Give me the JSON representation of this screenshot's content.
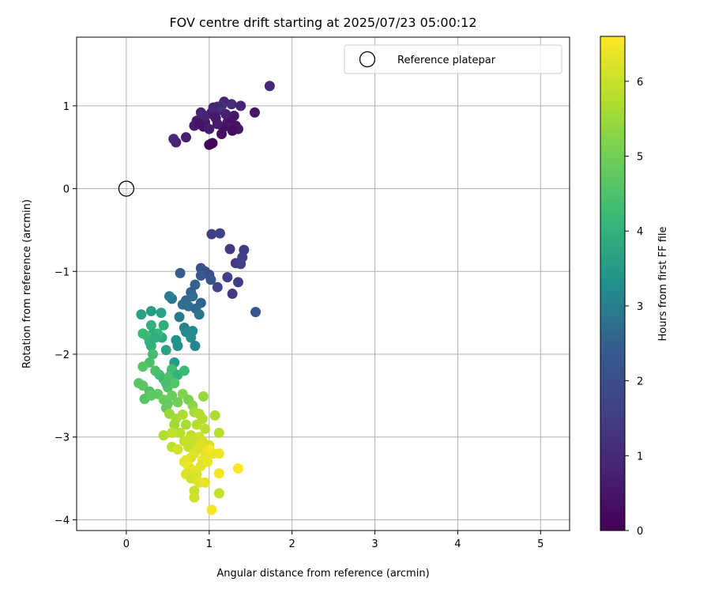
{
  "chart_data": {
    "type": "scatter",
    "title": "FOV centre drift starting at 2025/07/23 05:00:12",
    "xlabel": "Angular distance from reference (arcmin)",
    "ylabel": "Rotation from reference (arcmin)",
    "xlim": [
      -0.6,
      5.35
    ],
    "ylim": [
      -4.13,
      1.83
    ],
    "xticks": [
      0,
      1,
      2,
      3,
      4,
      5
    ],
    "yticks": [
      -4,
      -3,
      -2,
      -1,
      0,
      1
    ],
    "grid": true,
    "legend_position": "top-right",
    "reference": {
      "label": "Reference platepar",
      "x": 0,
      "y": 0
    },
    "colorbar": {
      "label": "Hours from first FF file",
      "range": [
        0,
        6.6
      ],
      "ticks": [
        0,
        1,
        2,
        3,
        4,
        5,
        6
      ],
      "colormap": "viridis"
    },
    "series": [
      {
        "points": [
          [
            1.02,
            0.54
          ],
          [
            1.0,
            0.53
          ],
          [
            1.04,
            0.55
          ],
          [
            1.15,
            0.66
          ],
          [
            0.6,
            0.56
          ],
          [
            0.72,
            0.62
          ],
          [
            0.57,
            0.6
          ],
          [
            1.55,
            0.92
          ],
          [
            1.73,
            1.24
          ],
          [
            0.85,
            0.82
          ],
          [
            0.93,
            0.75
          ],
          [
            1.08,
            0.85
          ],
          [
            1.22,
            0.8
          ],
          [
            1.32,
            0.76
          ],
          [
            1.35,
            0.72
          ],
          [
            1.18,
            1.05
          ],
          [
            1.27,
            1.02
          ],
          [
            1.38,
            1.0
          ],
          [
            1.1,
            0.99
          ],
          [
            1.03,
            0.92
          ],
          [
            0.9,
            0.92
          ],
          [
            0.82,
            0.76
          ],
          [
            0.95,
            0.8
          ],
          [
            1.17,
            0.74
          ],
          [
            1.25,
            0.85
          ],
          [
            1.3,
            0.88
          ],
          [
            1.1,
            0.78
          ],
          [
            1.0,
            0.72
          ],
          [
            0.95,
            0.88
          ],
          [
            1.12,
            0.95
          ],
          [
            1.2,
            0.9
          ],
          [
            0.88,
            0.78
          ],
          [
            1.06,
            0.88
          ],
          [
            1.28,
            0.7
          ],
          [
            1.15,
            1.0
          ],
          [
            1.05,
            0.98
          ],
          [
            1.03,
            -0.55
          ],
          [
            1.13,
            -0.54
          ],
          [
            1.25,
            -0.73
          ],
          [
            1.42,
            -0.74
          ],
          [
            1.4,
            -0.83
          ],
          [
            1.32,
            -0.9
          ],
          [
            1.38,
            -0.91
          ],
          [
            1.35,
            -1.13
          ],
          [
            1.22,
            -1.07
          ],
          [
            1.28,
            -1.27
          ],
          [
            1.1,
            -1.19
          ],
          [
            1.56,
            -1.49
          ],
          [
            0.9,
            -0.96
          ],
          [
            0.95,
            -1.0
          ],
          [
            1.0,
            -1.04
          ],
          [
            1.02,
            -1.1
          ],
          [
            0.9,
            -1.05
          ],
          [
            0.83,
            -1.16
          ],
          [
            0.78,
            -1.25
          ],
          [
            0.72,
            -1.35
          ],
          [
            0.65,
            -1.02
          ],
          [
            0.8,
            -1.3
          ],
          [
            0.75,
            -1.42
          ],
          [
            0.9,
            -1.38
          ],
          [
            0.68,
            -1.4
          ],
          [
            0.84,
            -1.45
          ],
          [
            0.88,
            -1.52
          ],
          [
            0.64,
            -1.55
          ],
          [
            0.55,
            -1.33
          ],
          [
            0.52,
            -1.3
          ],
          [
            0.7,
            -1.68
          ],
          [
            0.72,
            -1.73
          ],
          [
            0.8,
            -1.72
          ],
          [
            0.78,
            -1.8
          ],
          [
            0.83,
            -1.9
          ],
          [
            0.6,
            -1.83
          ],
          [
            0.62,
            -1.9
          ],
          [
            0.58,
            -2.1
          ],
          [
            0.55,
            -2.2
          ],
          [
            0.48,
            -1.95
          ],
          [
            0.43,
            -1.8
          ],
          [
            0.45,
            -1.65
          ],
          [
            0.3,
            -1.48
          ],
          [
            0.18,
            -1.52
          ],
          [
            0.42,
            -1.5
          ],
          [
            0.3,
            -1.65
          ],
          [
            0.32,
            -1.75
          ],
          [
            0.25,
            -1.78
          ],
          [
            0.2,
            -1.75
          ],
          [
            0.28,
            -1.85
          ],
          [
            0.3,
            -1.9
          ],
          [
            0.38,
            -1.75
          ],
          [
            0.35,
            -1.8
          ],
          [
            0.32,
            -2.0
          ],
          [
            0.28,
            -2.1
          ],
          [
            0.2,
            -2.15
          ],
          [
            0.35,
            -2.2
          ],
          [
            0.4,
            -2.25
          ],
          [
            0.45,
            -2.3
          ],
          [
            0.52,
            -2.27
          ],
          [
            0.55,
            -2.18
          ],
          [
            0.62,
            -2.25
          ],
          [
            0.7,
            -2.2
          ],
          [
            0.5,
            -2.4
          ],
          [
            0.58,
            -2.35
          ],
          [
            0.48,
            -2.35
          ],
          [
            0.15,
            -2.35
          ],
          [
            0.2,
            -2.38
          ],
          [
            0.28,
            -2.45
          ],
          [
            0.22,
            -2.54
          ],
          [
            0.3,
            -2.5
          ],
          [
            0.38,
            -2.48
          ],
          [
            0.45,
            -2.55
          ],
          [
            0.5,
            -2.6
          ],
          [
            0.48,
            -2.65
          ],
          [
            0.55,
            -2.5
          ],
          [
            0.62,
            -2.58
          ],
          [
            0.68,
            -2.48
          ],
          [
            0.75,
            -2.55
          ],
          [
            0.8,
            -2.62
          ],
          [
            0.52,
            -2.72
          ],
          [
            0.6,
            -2.78
          ],
          [
            0.68,
            -2.73
          ],
          [
            0.72,
            -2.85
          ],
          [
            0.58,
            -2.85
          ],
          [
            0.65,
            -2.95
          ],
          [
            0.55,
            -2.95
          ],
          [
            0.45,
            -2.98
          ],
          [
            0.82,
            -2.7
          ],
          [
            0.88,
            -2.72
          ],
          [
            0.92,
            -2.78
          ],
          [
            0.85,
            -2.85
          ],
          [
            0.95,
            -2.9
          ],
          [
            0.93,
            -2.51
          ],
          [
            1.07,
            -2.74
          ],
          [
            1.12,
            -2.95
          ],
          [
            0.78,
            -2.98
          ],
          [
            0.7,
            -3.05
          ],
          [
            0.8,
            -3.05
          ],
          [
            0.88,
            -3.0
          ],
          [
            0.92,
            -3.05
          ],
          [
            1.0,
            -3.1
          ],
          [
            0.75,
            -3.12
          ],
          [
            0.55,
            -3.12
          ],
          [
            0.62,
            -3.15
          ],
          [
            0.85,
            -3.15
          ],
          [
            0.9,
            -3.1
          ],
          [
            0.95,
            -3.2
          ],
          [
            0.82,
            -3.2
          ],
          [
            0.78,
            -3.25
          ],
          [
            0.72,
            -3.28
          ],
          [
            0.7,
            -3.3
          ],
          [
            0.75,
            -3.35
          ],
          [
            0.8,
            -3.4
          ],
          [
            0.85,
            -3.45
          ],
          [
            0.72,
            -3.45
          ],
          [
            1.05,
            -3.2
          ],
          [
            1.12,
            -3.2
          ],
          [
            1.0,
            -3.15
          ],
          [
            0.92,
            -3.28
          ],
          [
            1.12,
            -3.44
          ],
          [
            1.35,
            -3.38
          ],
          [
            0.78,
            -3.5
          ],
          [
            0.85,
            -3.52
          ],
          [
            0.88,
            -3.55
          ],
          [
            0.95,
            -3.55
          ],
          [
            0.82,
            -3.65
          ],
          [
            0.82,
            -3.73
          ],
          [
            1.12,
            -3.68
          ],
          [
            1.03,
            -3.88
          ],
          [
            0.9,
            -3.35
          ],
          [
            0.98,
            -3.3
          ]
        ],
        "hours": [
          0.08,
          0.05,
          0.12,
          0.3,
          0.85,
          0.7,
          1.0,
          0.5,
          0.95,
          0.6,
          0.4,
          0.55,
          0.65,
          0.45,
          0.5,
          0.9,
          1.05,
          0.85,
          0.95,
          0.75,
          0.85,
          0.65,
          0.55,
          0.35,
          0.4,
          0.5,
          0.6,
          0.7,
          0.8,
          1.0,
          0.75,
          0.45,
          0.6,
          0.3,
          1.1,
          0.9,
          1.5,
          1.6,
          1.4,
          1.5,
          1.55,
          1.45,
          1.6,
          1.5,
          1.55,
          1.45,
          1.7,
          2.25,
          2.1,
          2.0,
          1.9,
          2.2,
          2.35,
          2.55,
          2.5,
          2.6,
          2.4,
          2.7,
          2.8,
          2.55,
          2.75,
          2.65,
          2.85,
          2.95,
          2.9,
          3.0,
          3.05,
          3.15,
          3.2,
          3.25,
          3.1,
          3.3,
          3.35,
          3.45,
          3.5,
          3.7,
          3.8,
          3.9,
          3.55,
          3.6,
          3.65,
          4.0,
          3.85,
          4.3,
          4.2,
          4.1,
          4.0,
          4.15,
          3.9,
          4.35,
          4.45,
          4.6,
          4.5,
          4.4,
          4.25,
          4.5,
          4.35,
          4.05,
          4.2,
          4.55,
          4.6,
          4.4,
          4.65,
          4.7,
          4.55,
          4.6,
          4.75,
          4.75,
          4.9,
          4.8,
          4.85,
          4.95,
          5.0,
          5.2,
          5.1,
          5.3,
          5.5,
          5.6,
          5.7,
          5.65,
          5.55,
          5.8,
          5.9,
          5.75,
          5.6,
          5.7,
          5.75,
          5.8,
          5.85,
          5.45,
          5.7,
          5.8,
          5.9,
          5.95,
          6.0,
          6.05,
          6.1,
          6.15,
          6.0,
          5.85,
          6.1,
          6.2,
          6.25,
          6.3,
          6.2,
          6.25,
          6.35,
          6.3,
          6.4,
          6.3,
          6.2,
          6.25,
          6.35,
          6.45,
          6.5,
          6.4,
          6.5,
          6.55,
          6.1,
          6.2,
          6.3,
          6.35,
          6.0,
          6.05,
          5.95,
          6.5,
          6.3,
          6.4
        ]
      }
    ]
  }
}
